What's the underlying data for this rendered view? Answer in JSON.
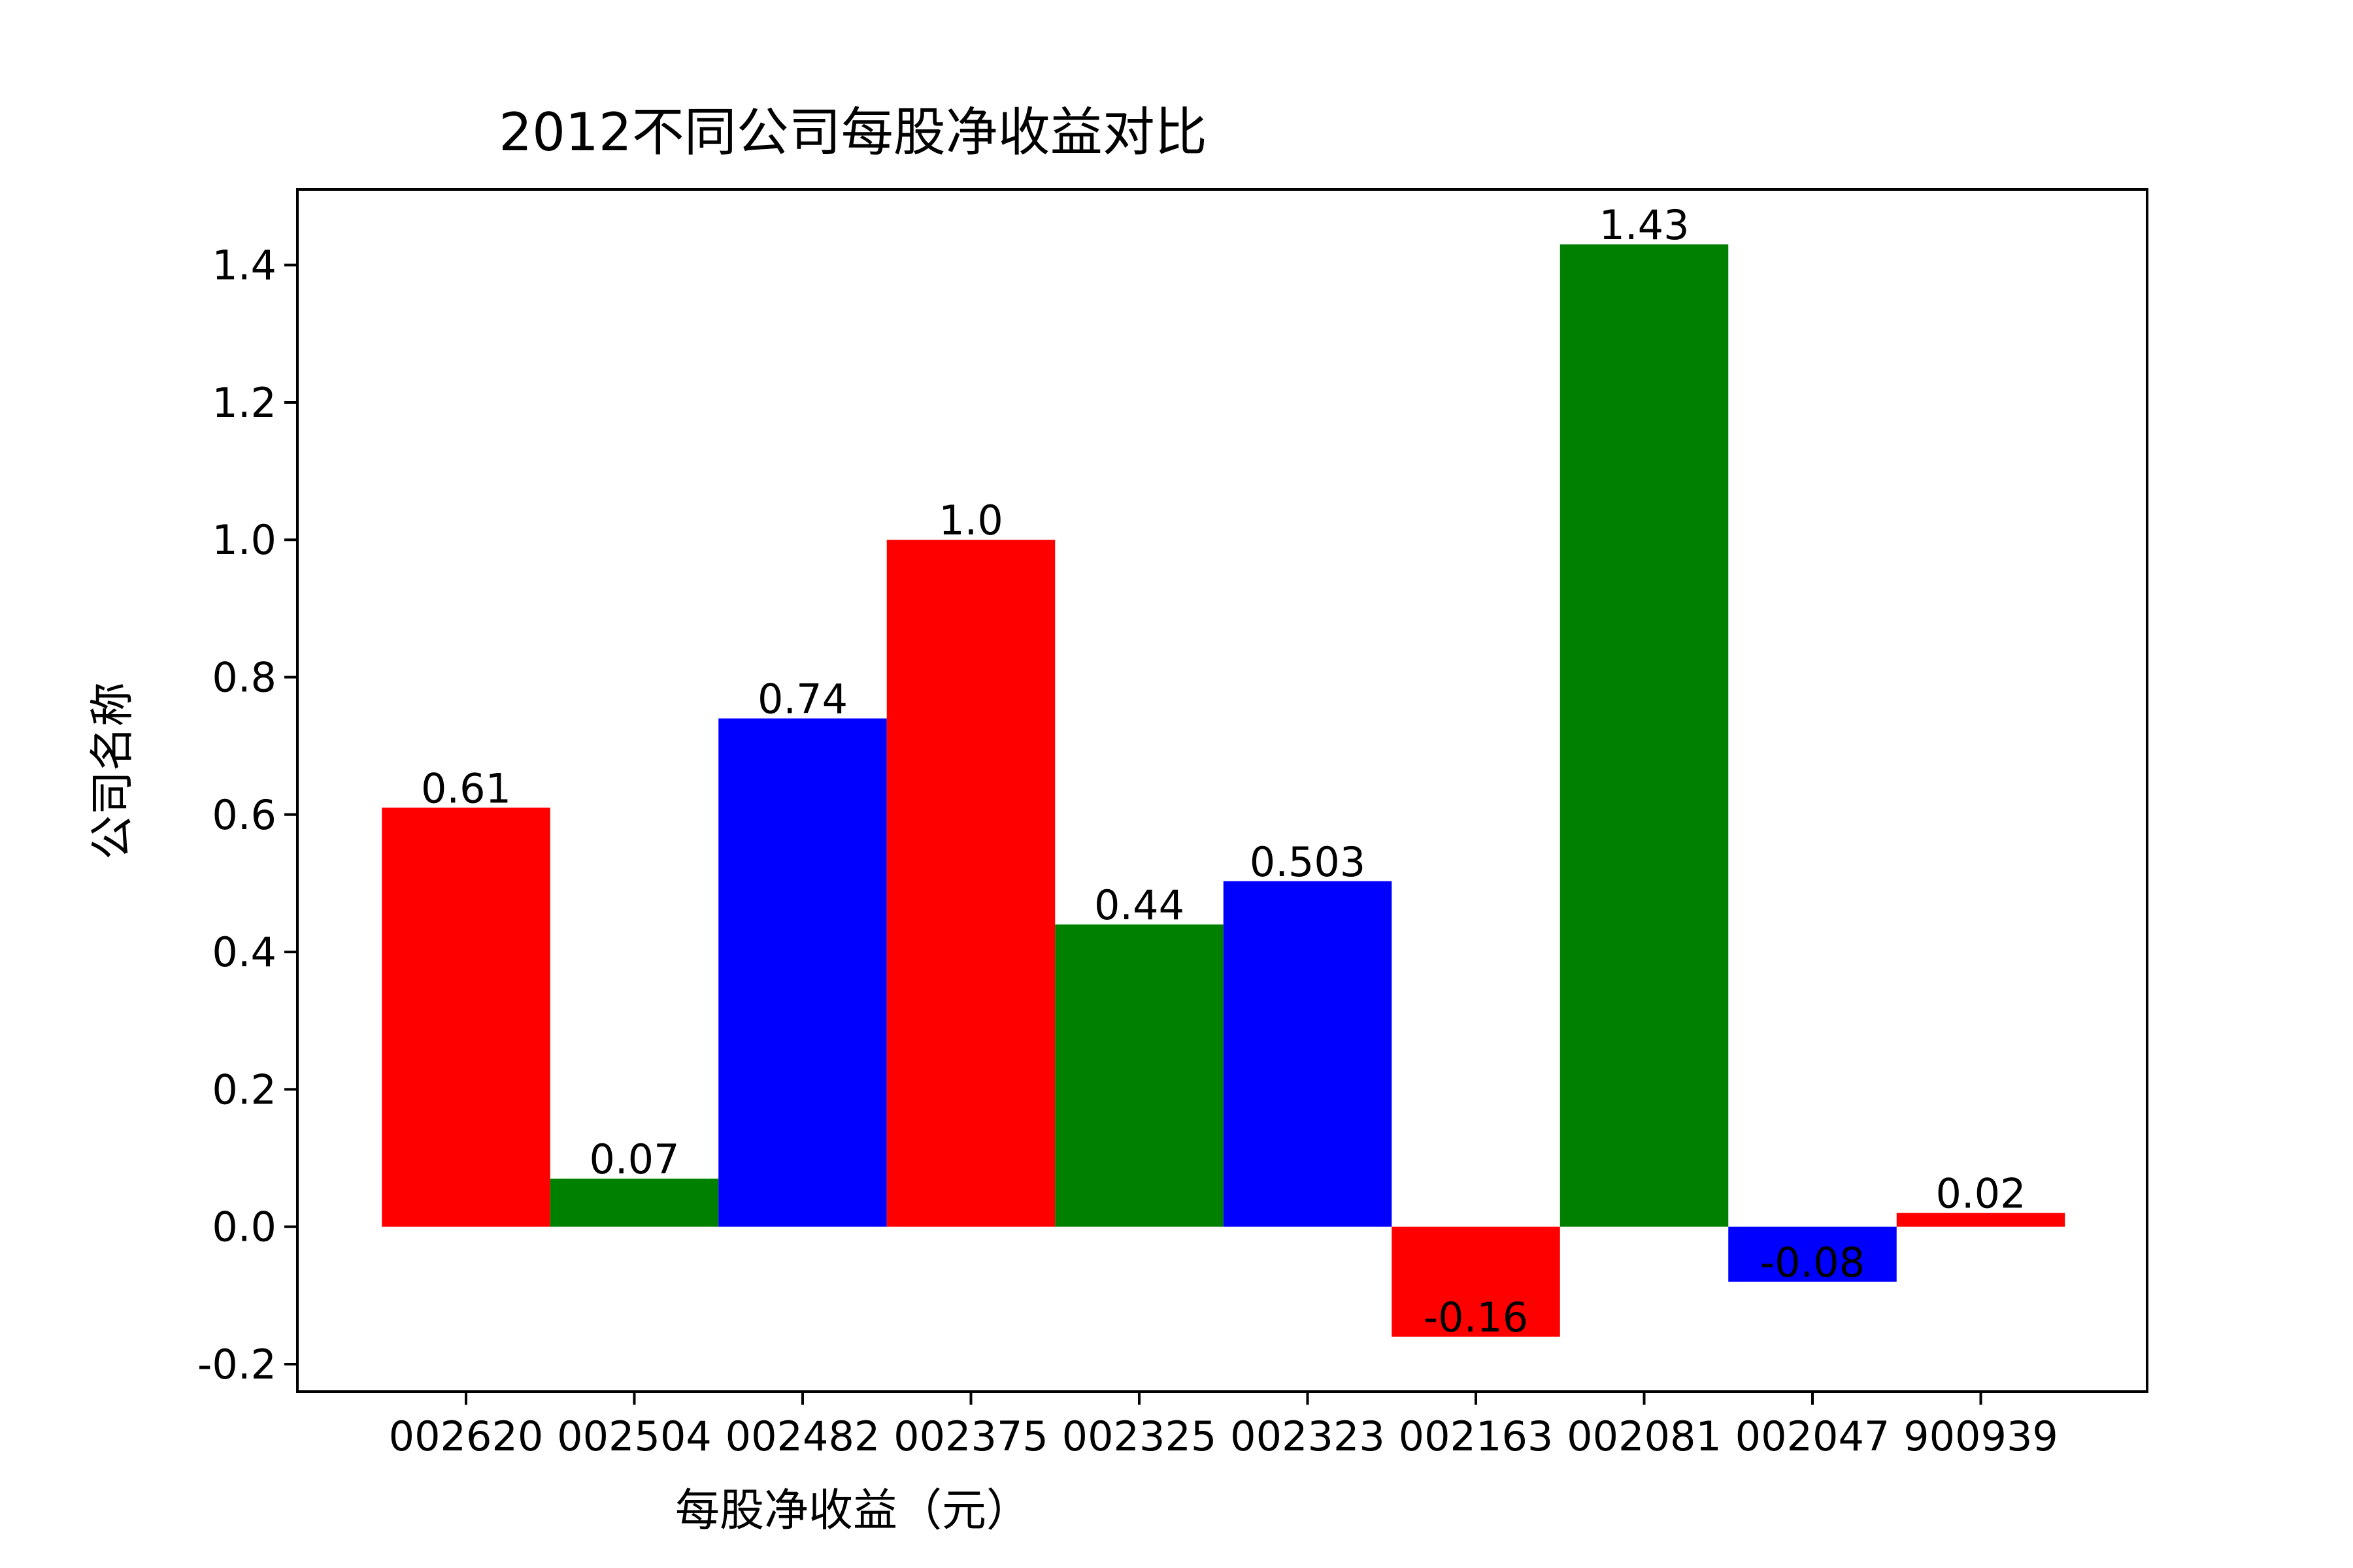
{
  "chart_data": {
    "type": "bar",
    "title": "2012不同公司每股净收益对比",
    "xlabel": "每股净收益（元）",
    "ylabel": "公司名称",
    "categories": [
      "002620",
      "002504",
      "002482",
      "002375",
      "002325",
      "002323",
      "002163",
      "002081",
      "002047",
      "900939"
    ],
    "values": [
      0.61,
      0.07,
      0.74,
      1.0,
      0.44,
      0.503,
      -0.16,
      1.43,
      -0.08,
      0.02
    ],
    "value_labels": [
      "0.61",
      "0.07",
      "0.74",
      "1.0",
      "0.44",
      "0.503",
      "-0.16",
      "1.43",
      "-0.08",
      "0.02"
    ],
    "colors": [
      "#ff0000",
      "#008000",
      "#0000ff",
      "#ff0000",
      "#008000",
      "#0000ff",
      "#ff0000",
      "#008000",
      "#0000ff",
      "#ff0000"
    ],
    "yticks": [
      "-0.2",
      "0.0",
      "0.2",
      "0.4",
      "0.6",
      "0.8",
      "1.0",
      "1.2",
      "1.4"
    ],
    "ylim": [
      -0.24,
      1.51
    ],
    "grid": false
  }
}
